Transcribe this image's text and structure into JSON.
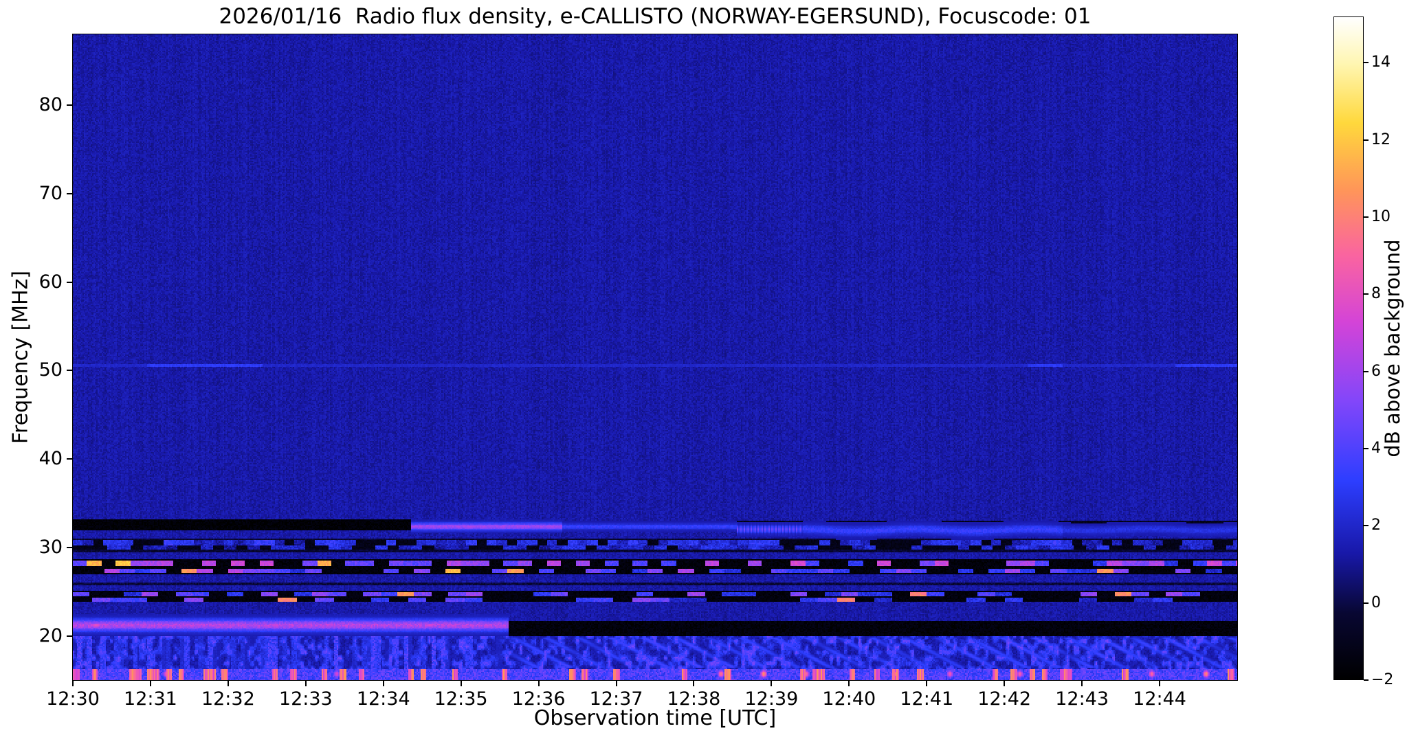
{
  "chart_data": {
    "type": "heatmap",
    "title": "2026/01/16  Radio flux density, e-CALLISTO (NORWAY-EGERSUND), Focuscode: 01",
    "xlabel": "Observation time [UTC]",
    "ylabel": "Frequency [MHz]",
    "colorbar_label": "dB above background",
    "x_ticks": [
      "12:30",
      "12:31",
      "12:32",
      "12:33",
      "12:34",
      "12:35",
      "12:36",
      "12:37",
      "12:38",
      "12:39",
      "12:40",
      "12:41",
      "12:42",
      "12:43",
      "12:44"
    ],
    "x_range_minutes": [
      0,
      15
    ],
    "y_ticks": [
      20,
      30,
      40,
      50,
      60,
      70,
      80
    ],
    "y_range_mhz": [
      15,
      88
    ],
    "colorbar_ticks": [
      -2,
      0,
      2,
      4,
      6,
      8,
      10,
      12,
      14
    ],
    "color_scale_db": [
      -2,
      15.2
    ],
    "background_db": 1.3,
    "background_noise_db": 0.45,
    "colormap_stops": [
      [
        0.0,
        [
          0,
          0,
          0
        ]
      ],
      [
        0.1,
        [
          8,
          7,
          50
        ]
      ],
      [
        0.19,
        [
          24,
          24,
          168
        ]
      ],
      [
        0.3,
        [
          45,
          62,
          255
        ]
      ],
      [
        0.42,
        [
          130,
          70,
          250
        ]
      ],
      [
        0.54,
        [
          212,
          68,
          215
        ]
      ],
      [
        0.64,
        [
          250,
          100,
          160
        ]
      ],
      [
        0.74,
        [
          255,
          150,
          88
        ]
      ],
      [
        0.84,
        [
          255,
          216,
          60
        ]
      ],
      [
        0.93,
        [
          255,
          246,
          178
        ]
      ],
      [
        1.0,
        [
          255,
          255,
          255
        ]
      ]
    ],
    "features": [
      {
        "type": "noise_region",
        "f_min": 15.0,
        "f_max": 20.3,
        "base_db": 0.6,
        "amp_db": 3.4,
        "scale_t": 22,
        "scale_f": 1.6
      },
      {
        "type": "vertical_streaks",
        "f_min": 15.0,
        "f_max": 20.0,
        "t0": 0,
        "t1": 5.62,
        "period_min": 0.06,
        "amp_db": 2.4
      },
      {
        "type": "wave_pattern",
        "f_min": 16.4,
        "f_max": 19.8,
        "t0": 5.62,
        "t1": 15,
        "period_min": 0.42,
        "amp_db": 2.6
      },
      {
        "type": "bottom_edge",
        "f_min": 15.0,
        "f_max": 16.2,
        "base_db": 2.6,
        "amp_db": 2.4,
        "hot_frac": 0.17,
        "hot_db": 9.8
      },
      {
        "type": "dark_band",
        "f_min": 29.5,
        "f_max": 31.05,
        "t0": 0,
        "t1": 15,
        "db": -0.4
      },
      {
        "type": "dashed_row",
        "freq": 30.55,
        "half_width": 0.28,
        "period_min": 0.13,
        "dark_frac": 0.32,
        "db_min": 1.2,
        "db_max": 3.4,
        "hot_frac": 0,
        "db_hot": 0
      },
      {
        "type": "dashed_row",
        "freq": 29.95,
        "half_width": 0.25,
        "period_min": 0.15,
        "dark_frac": 0.38,
        "db_min": 1.0,
        "db_max": 3.0,
        "hot_frac": 0,
        "db_hot": 0
      },
      {
        "type": "dark_band",
        "f_min": 26.9,
        "f_max": 28.65,
        "t0": 0,
        "t1": 15,
        "db": -1.6
      },
      {
        "type": "dashed_row",
        "freq": 28.15,
        "half_width": 0.3,
        "period_min": 0.185,
        "dark_frac": 0.42,
        "db_min": 2.5,
        "db_max": 7.5,
        "hot_frac": 0.12,
        "db_hot": 10.5
      },
      {
        "type": "dashed_row",
        "freq": 27.35,
        "half_width": 0.28,
        "period_min": 0.2,
        "dark_frac": 0.45,
        "db_min": 2.0,
        "db_max": 6.5,
        "hot_frac": 0.08,
        "db_hot": 10.0
      },
      {
        "type": "dark_band",
        "f_min": 25.75,
        "f_max": 26.1,
        "t0": 0,
        "t1": 15,
        "db": -0.2
      },
      {
        "type": "dark_band",
        "f_min": 23.85,
        "f_max": 25.05,
        "t0": 0,
        "t1": 15,
        "db": -1.5
      },
      {
        "type": "dashed_row",
        "freq": 24.72,
        "half_width": 0.26,
        "period_min": 0.22,
        "dark_frac": 0.48,
        "db_min": 2.0,
        "db_max": 6.0,
        "hot_frac": 0.06,
        "db_hot": 9.5
      },
      {
        "type": "dashed_row",
        "freq": 24.15,
        "half_width": 0.24,
        "period_min": 0.24,
        "dark_frac": 0.5,
        "db_min": 1.8,
        "db_max": 5.5,
        "hot_frac": 0.05,
        "db_hot": 9.0
      },
      {
        "type": "dark_band",
        "f_min": 31.9,
        "f_max": 33.1,
        "t0": 0,
        "t1": 4.35,
        "db": -1.8
      },
      {
        "type": "dark_band",
        "f_min": 32.6,
        "f_max": 33.05,
        "t0": 4.35,
        "t1": 15,
        "db": -1.0
      },
      {
        "type": "dark_band",
        "f_min": 20.0,
        "f_max": 21.7,
        "t0": 5.62,
        "t1": 15,
        "db": -1.6
      },
      {
        "type": "dark_band",
        "f_min": 19.9,
        "f_max": 20.5,
        "t0": 0,
        "t1": 5.62,
        "db": -0.6
      },
      {
        "type": "bright_line",
        "freq": 21.2,
        "sigma": 0.45,
        "t0": 0,
        "t1": 5.62,
        "db": 6.5,
        "noise_db": 1.6
      },
      {
        "type": "hot_spots",
        "freq": 21.2,
        "half_width": 0.4,
        "sigma_t": 0.12,
        "spots": [
          [
            0.3,
            8.2
          ],
          [
            2.6,
            7.2
          ],
          [
            4.6,
            7.6
          ]
        ]
      },
      {
        "type": "bright_line",
        "freq": 32.35,
        "sigma": 0.28,
        "t0": 4.35,
        "t1": 6.3,
        "db": 6.0,
        "noise_db": 1.0
      },
      {
        "type": "bright_line",
        "freq": 32.35,
        "sigma": 0.22,
        "t0": 6.3,
        "t1": 8.55,
        "db": 3.4,
        "noise_db": 0.8
      },
      {
        "type": "striped_line",
        "freq": 32.05,
        "sigma": 0.3,
        "t0": 8.55,
        "t1": 9.4,
        "db": 2.8,
        "stripe_period_min": 0.045,
        "stripe_db": 2.4
      },
      {
        "type": "bright_line",
        "freq": 31.95,
        "sigma": 0.35,
        "t0": 9.4,
        "t1": 12.75,
        "db": 3.4,
        "noise_db": 0.9,
        "wobble": 0.12
      },
      {
        "type": "bright_line",
        "freq": 32.0,
        "sigma": 0.3,
        "t0": 12.75,
        "t1": 15,
        "db": 2.6,
        "noise_db": 0.7,
        "wobble": 0.1
      },
      {
        "type": "hline_segments",
        "freq": 50.6,
        "half_width": 0.18,
        "db": 3.0,
        "faint_db": 2.0,
        "segments": [
          [
            0.95,
            2.45
          ],
          [
            12.3,
            12.75
          ],
          [
            14.2,
            15.0
          ]
        ]
      },
      {
        "type": "hot_spots",
        "freq": 15.7,
        "half_width": 0.55,
        "sigma_t": 0.05,
        "spots": [
          [
            1.2,
            8.0
          ],
          [
            3.4,
            7.5
          ],
          [
            8.35,
            9.5
          ],
          [
            8.9,
            10.5
          ],
          [
            9.45,
            9.0
          ],
          [
            10.6,
            9.8
          ],
          [
            11.3,
            8.5
          ],
          [
            12.2,
            8.8
          ],
          [
            13.9,
            9.2
          ],
          [
            14.6,
            10.2
          ]
        ]
      }
    ]
  }
}
